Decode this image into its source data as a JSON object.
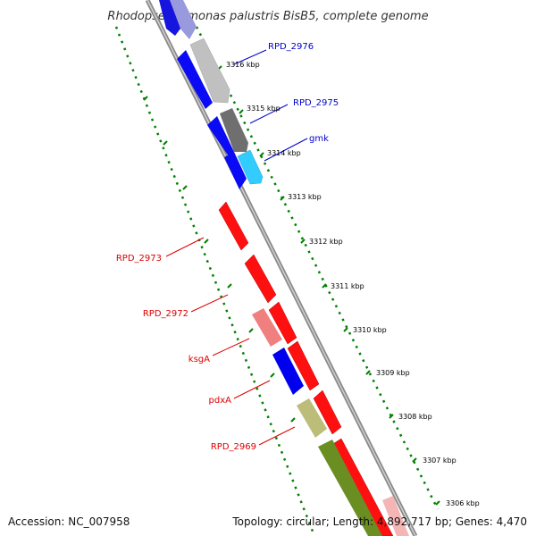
{
  "title": "Rhodopseudomonas palustris BisB5, complete genome",
  "footer": {
    "accession": "Accession: NC_007958",
    "topology": "Topology: circular; Length: 4,892,717 bp; Genes: 4,470"
  },
  "colors": {
    "forward_label": "#0000cc",
    "reverse_label": "#dd0000",
    "ruler_dots": "#008000",
    "backbone": "#888888"
  },
  "ruler_kbp": [
    3316,
    3315,
    3314,
    3313,
    3312,
    3311,
    3310,
    3309,
    3308,
    3307,
    3306
  ],
  "ruler_unit": "kbp",
  "labeled_genes": [
    {
      "name": "RPD_2976",
      "strand": "forward",
      "color": "#c0c0c0"
    },
    {
      "name": "RPD_2975",
      "strand": "forward",
      "color": "#707070"
    },
    {
      "name": "gmk",
      "strand": "forward",
      "color": "#33ccff"
    },
    {
      "name": "RPD_2973",
      "strand": "reverse",
      "color": "#ff0000"
    },
    {
      "name": "RPD_2972",
      "strand": "reverse",
      "color": "#ff0000"
    },
    {
      "name": "ksgA",
      "strand": "reverse",
      "color": "#ee7777"
    },
    {
      "name": "pdxA",
      "strand": "reverse",
      "color": "#0000ee"
    },
    {
      "name": "RPD_2969",
      "strand": "reverse",
      "color": "#bbbb77"
    }
  ]
}
